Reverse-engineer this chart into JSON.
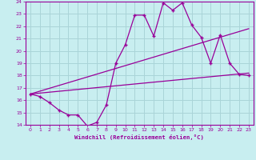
{
  "xlabel": "Windchill (Refroidissement éolien,°C)",
  "bg_color": "#c8eef0",
  "grid_color": "#aad4d8",
  "line_color": "#990099",
  "xlim": [
    -0.5,
    23.5
  ],
  "ylim": [
    14,
    24
  ],
  "xticks": [
    0,
    1,
    2,
    3,
    4,
    5,
    6,
    7,
    8,
    9,
    10,
    11,
    12,
    13,
    14,
    15,
    16,
    17,
    18,
    19,
    20,
    21,
    22,
    23
  ],
  "yticks": [
    14,
    15,
    16,
    17,
    18,
    19,
    20,
    21,
    22,
    23,
    24
  ],
  "line1_x": [
    0,
    1,
    2,
    3,
    4,
    5,
    6,
    7,
    8,
    9,
    10,
    11,
    12,
    13,
    14,
    15,
    16,
    17,
    18,
    19,
    20,
    21,
    22,
    23
  ],
  "line1_y": [
    16.5,
    16.3,
    15.8,
    15.2,
    14.8,
    14.8,
    13.9,
    14.2,
    15.6,
    19.0,
    20.5,
    22.9,
    22.9,
    21.2,
    23.9,
    23.3,
    23.9,
    22.1,
    21.1,
    19.0,
    21.3,
    19.0,
    18.1,
    18.0
  ],
  "line2_x": [
    0,
    23
  ],
  "line2_y": [
    16.5,
    21.8
  ],
  "line3_x": [
    0,
    23
  ],
  "line3_y": [
    16.5,
    18.2
  ]
}
